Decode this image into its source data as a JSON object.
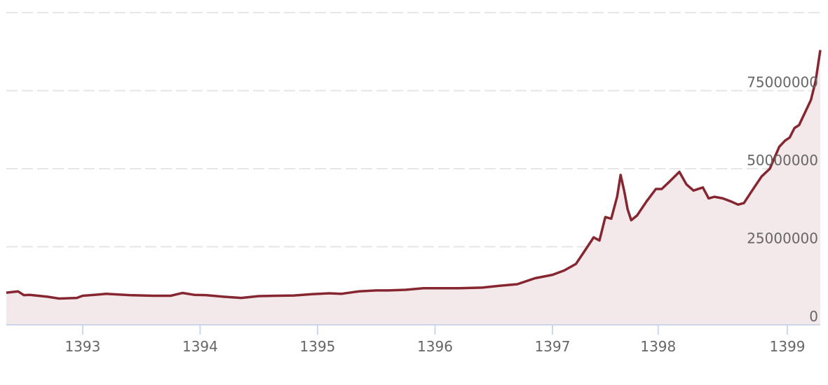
{
  "chart_data": {
    "type": "area",
    "title": "",
    "xlabel": "",
    "ylabel": "",
    "xlim": [
      1392.35,
      1399.28
    ],
    "ylim": [
      0,
      100000000
    ],
    "grid": true,
    "legend": "none",
    "x_ticks": [
      "1393",
      "1394",
      "1395",
      "1396",
      "1397",
      "1398",
      "1399"
    ],
    "x_tick_values": [
      1393.0,
      1394.0,
      1395.0,
      1396.0,
      1397.0,
      1397.9,
      1399.0
    ],
    "y_ticks": [
      "0",
      "25000000",
      "50000000",
      "75000000"
    ],
    "y_tick_values": [
      0,
      25000000,
      50000000,
      75000000
    ],
    "series": [
      {
        "color": "#862630",
        "fill": "#f4e9ea",
        "x": [
          1392.35,
          1392.45,
          1392.5,
          1392.55,
          1392.7,
          1392.8,
          1392.95,
          1393.0,
          1393.1,
          1393.2,
          1393.4,
          1393.6,
          1393.75,
          1393.85,
          1393.95,
          1394.05,
          1394.2,
          1394.35,
          1394.5,
          1394.65,
          1394.8,
          1394.95,
          1395.1,
          1395.2,
          1395.35,
          1395.5,
          1395.6,
          1395.75,
          1395.9,
          1396.05,
          1396.2,
          1396.4,
          1396.55,
          1396.7,
          1396.85,
          1397.0,
          1397.1,
          1397.2,
          1397.28,
          1397.35,
          1397.4,
          1397.45,
          1397.5,
          1397.55,
          1397.58,
          1397.61,
          1397.64,
          1397.67,
          1397.72,
          1397.8,
          1397.88,
          1397.93,
          1398.0,
          1398.08,
          1398.14,
          1398.2,
          1398.28,
          1398.33,
          1398.38,
          1398.45,
          1398.52,
          1398.58,
          1398.63,
          1398.7,
          1398.78,
          1398.85,
          1398.93,
          1398.98,
          1399.02,
          1399.06,
          1399.1,
          1399.15,
          1399.2,
          1399.24,
          1399.28
        ],
        "y": [
          10300000,
          10700000,
          9500000,
          9600000,
          9000000,
          8400000,
          8600000,
          9300000,
          9600000,
          9900000,
          9500000,
          9300000,
          9300000,
          10200000,
          9600000,
          9500000,
          9000000,
          8600000,
          9200000,
          9300000,
          9400000,
          9800000,
          10100000,
          9900000,
          10700000,
          11000000,
          11000000,
          11200000,
          11700000,
          11700000,
          11700000,
          11900000,
          12500000,
          13000000,
          14900000,
          16000000,
          17400000,
          19500000,
          24000000,
          28000000,
          27000000,
          34500000,
          34000000,
          41000000,
          48000000,
          43000000,
          37000000,
          33500000,
          35000000,
          39500000,
          43500000,
          43500000,
          46000000,
          49000000,
          45000000,
          43000000,
          44000000,
          40500000,
          41000000,
          40500000,
          39500000,
          38500000,
          39000000,
          43000000,
          47500000,
          50000000,
          57000000,
          59000000,
          60000000,
          63000000,
          64000000,
          68000000,
          72000000,
          78000000,
          88000000
        ]
      }
    ]
  }
}
